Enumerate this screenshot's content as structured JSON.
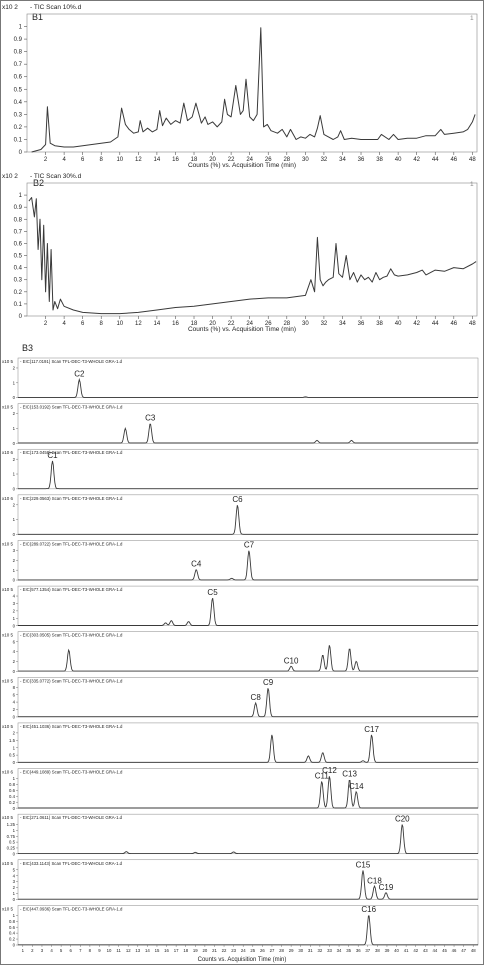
{
  "panels": {
    "b1": {
      "tag": "B1",
      "scale": "x10 2",
      "trace_title": "- TIC Scan 10%.d",
      "marker": "1",
      "xlabel": "Counts (%) vs. Acquisition Time (min)"
    },
    "b2": {
      "tag": "B2",
      "scale": "x10 2",
      "trace_title": "- TIC Scan 30%.d",
      "marker": "1",
      "xlabel": "Counts (%) vs. Acquisition Time (min)"
    },
    "b3": {
      "tag": "B3",
      "xlabel": "Counts vs. Acquisition Time (min)"
    }
  },
  "colors": {
    "trace": "#3a3a3a",
    "axis": "#555555",
    "frame": "#888888",
    "text": "#222222",
    "bg": "#ffffff"
  },
  "chart_data": [
    {
      "type": "line",
      "title": "- TIC Scan 10%.d",
      "xlabel": "Counts (%) vs. Acquisition Time (min)",
      "xlim": [
        0,
        48.5
      ],
      "ylim": [
        0,
        1.1
      ],
      "x_ticks": [
        2,
        4,
        6,
        8,
        10,
        12,
        14,
        16,
        18,
        20,
        22,
        24,
        26,
        28,
        30,
        32,
        34,
        36,
        38,
        40,
        42,
        44,
        46,
        48
      ],
      "y_ticks": [
        0,
        0.1,
        0.2,
        0.3,
        0.4,
        0.5,
        0.6,
        0.7,
        0.8,
        0.9,
        1
      ],
      "series": [
        {
          "x": [
            0.5,
            1.5,
            2.0,
            2.2,
            2.5,
            3,
            4,
            5,
            6,
            7,
            8,
            9,
            9.8,
            10.2,
            10.6,
            11,
            11.5,
            12,
            12.2,
            12.5,
            13,
            13.5,
            14,
            14.3,
            14.6,
            15,
            15.5,
            16,
            16.5,
            16.9,
            17.3,
            17.8,
            18.2,
            18.8,
            19.2,
            19.5,
            20,
            20.5,
            21,
            21.3,
            21.6,
            22,
            22.5,
            23,
            23.3,
            23.6,
            24,
            24.4,
            24.8,
            25.2,
            25.5,
            25.9,
            26.3,
            27,
            27.5,
            28,
            28.4,
            29,
            29.5,
            30,
            30.5,
            31,
            31.3,
            31.6,
            32,
            32.5,
            33,
            33.5,
            33.8,
            34.2,
            35,
            36,
            37,
            37.8,
            38.2,
            39,
            39.5,
            40,
            41,
            42,
            43,
            44,
            44.6,
            45,
            46,
            47,
            47.5,
            48,
            48.3
          ],
          "y": [
            0,
            0.02,
            0.06,
            0.36,
            0.07,
            0.05,
            0.04,
            0.04,
            0.05,
            0.06,
            0.07,
            0.08,
            0.12,
            0.35,
            0.22,
            0.18,
            0.15,
            0.16,
            0.25,
            0.16,
            0.19,
            0.16,
            0.18,
            0.33,
            0.21,
            0.27,
            0.22,
            0.25,
            0.23,
            0.39,
            0.25,
            0.28,
            0.39,
            0.23,
            0.28,
            0.22,
            0.24,
            0.2,
            0.24,
            0.42,
            0.3,
            0.28,
            0.53,
            0.3,
            0.33,
            0.58,
            0.28,
            0.25,
            0.3,
            0.99,
            0.2,
            0.22,
            0.17,
            0.15,
            0.18,
            0.12,
            0.18,
            0.1,
            0.12,
            0.11,
            0.14,
            0.12,
            0.19,
            0.29,
            0.14,
            0.12,
            0.1,
            0.12,
            0.17,
            0.1,
            0.11,
            0.1,
            0.1,
            0.1,
            0.14,
            0.1,
            0.14,
            0.1,
            0.11,
            0.11,
            0.13,
            0.13,
            0.18,
            0.14,
            0.15,
            0.16,
            0.18,
            0.24,
            0.3
          ]
        }
      ]
    },
    {
      "type": "line",
      "title": "- TIC Scan 30%.d",
      "xlabel": "Counts (%) vs. Acquisition Time (min)",
      "xlim": [
        0,
        48.5
      ],
      "ylim": [
        0,
        1.1
      ],
      "x_ticks": [
        2,
        4,
        6,
        8,
        10,
        12,
        14,
        16,
        18,
        20,
        22,
        24,
        26,
        28,
        30,
        32,
        34,
        36,
        38,
        40,
        42,
        44,
        46,
        48
      ],
      "y_ticks": [
        0,
        0.1,
        0.2,
        0.3,
        0.4,
        0.5,
        0.6,
        0.7,
        0.8,
        0.9,
        1
      ],
      "series": [
        {
          "x": [
            0.2,
            0.5,
            0.8,
            1.0,
            1.2,
            1.4,
            1.6,
            1.8,
            2.0,
            2.2,
            2.4,
            2.6,
            2.8,
            3.0,
            3.3,
            3.6,
            4,
            5,
            6,
            8,
            10,
            12,
            14,
            16,
            18,
            20,
            22,
            24,
            26,
            28,
            30,
            30.6,
            31,
            31.3,
            31.6,
            31.9,
            32.2,
            32.5,
            33,
            33.3,
            33.6,
            34,
            34.4,
            34.8,
            35.2,
            35.6,
            36,
            36.4,
            36.8,
            37.2,
            37.6,
            38,
            38.4,
            38.8,
            39.2,
            39.6,
            40,
            41,
            42,
            42.6,
            43,
            44,
            45,
            46,
            47,
            48,
            48.4
          ],
          "y": [
            0.95,
            0.98,
            0.82,
            0.97,
            0.55,
            0.8,
            0.3,
            0.75,
            0.2,
            0.6,
            0.12,
            0.55,
            0.05,
            0.12,
            0.06,
            0.14,
            0.08,
            0.05,
            0.03,
            0.02,
            0.02,
            0.03,
            0.05,
            0.07,
            0.08,
            0.1,
            0.12,
            0.14,
            0.15,
            0.15,
            0.17,
            0.3,
            0.2,
            0.65,
            0.3,
            0.25,
            0.28,
            0.3,
            0.32,
            0.6,
            0.35,
            0.32,
            0.5,
            0.3,
            0.36,
            0.28,
            0.34,
            0.3,
            0.32,
            0.28,
            0.36,
            0.3,
            0.32,
            0.33,
            0.39,
            0.34,
            0.33,
            0.34,
            0.36,
            0.38,
            0.34,
            0.38,
            0.37,
            0.4,
            0.39,
            0.43,
            0.45
          ]
        }
      ]
    },
    {
      "type": "line",
      "subplots": [
        {
          "label": "EIC(117.0191) Scan TFL-DEC-T3-WHOLE GRA-1.d",
          "scale": "x10 5",
          "yticks": [
            0,
            1,
            2
          ],
          "ymax": 2.2,
          "peaks": [
            {
              "x": 6.9,
              "h": 0.55,
              "label": "C2"
            },
            {
              "x": 30.5,
              "h": 0.02
            }
          ]
        },
        {
          "label": "EIC(153.0192) Scan TFL-DEC-T3-WHOLE GRA-1.d",
          "scale": "x10 5",
          "yticks": [
            0,
            1,
            2
          ],
          "ymax": 2.2,
          "peaks": [
            {
              "x": 11.7,
              "h": 0.45
            },
            {
              "x": 14.3,
              "h": 0.6,
              "label": "C3"
            },
            {
              "x": 31.7,
              "h": 0.08
            },
            {
              "x": 35.3,
              "h": 0.08
            }
          ]
        },
        {
          "label": "EIC(173.0458) Scan TFL-DEC-T3-WHOLE GRA-1.d",
          "scale": "x10 6",
          "yticks": [
            0,
            1,
            2
          ],
          "ymax": 2.2,
          "peaks": [
            {
              "x": 4.1,
              "h": 0.85,
              "label": "C1"
            }
          ]
        },
        {
          "label": "EIC(229.0563) Scan TFL-DEC-T3-WHOLE GRA-1.d",
          "scale": "x10 6",
          "yticks": [
            0,
            1,
            2
          ],
          "ymax": 2.2,
          "peaks": [
            {
              "x": 23.4,
              "h": 0.9,
              "label": "C6"
            }
          ]
        },
        {
          "label": "EIC(289.0722) Scan TFL-DEC-T3-WHOLE GRA-1.d",
          "scale": "x10 5",
          "yticks": [
            0,
            1,
            2,
            3
          ],
          "ymax": 3.3,
          "peaks": [
            {
              "x": 19.1,
              "h": 0.32,
              "label": "C4"
            },
            {
              "x": 22.8,
              "h": 0.05
            },
            {
              "x": 24.6,
              "h": 0.9,
              "label": "C7"
            }
          ]
        },
        {
          "label": "EIC(577.1354) Scan TFL-DEC-T3-WHOLE GRA-1.d",
          "scale": "x10 5",
          "yticks": [
            0,
            1,
            2,
            3,
            4
          ],
          "ymax": 4.4,
          "peaks": [
            {
              "x": 15.9,
              "h": 0.08
            },
            {
              "x": 16.5,
              "h": 0.15
            },
            {
              "x": 18.3,
              "h": 0.12
            },
            {
              "x": 20.8,
              "h": 0.85,
              "label": "C5"
            }
          ]
        },
        {
          "label": "EIC(303.0505) Scan TFL-DEC-T3-WHOLE GRA-1.d",
          "scale": "x10 5",
          "yticks": [
            0,
            2,
            4,
            6
          ],
          "ymax": 6.6,
          "peaks": [
            {
              "x": 5.8,
              "h": 0.65
            },
            {
              "x": 29.0,
              "h": 0.15,
              "label": "C10"
            },
            {
              "x": 32.3,
              "h": 0.5
            },
            {
              "x": 33.0,
              "h": 0.8
            },
            {
              "x": 35.1,
              "h": 0.7
            },
            {
              "x": 35.8,
              "h": 0.3
            }
          ]
        },
        {
          "label": "EIC(335.0772) Scan TFL-DEC-T3-WHOLE GRA-1.d",
          "scale": "x10 5",
          "yticks": [
            0,
            2,
            4,
            6,
            8
          ],
          "ymax": 8.8,
          "peaks": [
            {
              "x": 25.3,
              "h": 0.42,
              "label": "C8"
            },
            {
              "x": 26.6,
              "h": 0.88,
              "label": "C9"
            }
          ]
        },
        {
          "label": "EIC(451.1036) Scan TFL-DEC-T3-WHOLE GRA-1.d",
          "scale": "x10 5",
          "yticks": [
            0,
            0.5,
            1,
            1.5,
            2
          ],
          "ymax": 2.2,
          "peaks": [
            {
              "x": 27.0,
              "h": 0.85
            },
            {
              "x": 30.8,
              "h": 0.2
            },
            {
              "x": 32.3,
              "h": 0.3
            },
            {
              "x": 36.5,
              "h": 0.05
            },
            {
              "x": 37.4,
              "h": 0.85,
              "label": "C17"
            }
          ]
        },
        {
          "label": "EIC(449.1089) Scan TFL-DEC-T3-WHOLE GRA-1.d",
          "scale": "x10 6",
          "yticks": [
            0,
            0.2,
            0.4,
            0.6,
            0.8,
            1
          ],
          "ymax": 1.1,
          "peaks": [
            {
              "x": 32.2,
              "h": 0.82,
              "label": "C11"
            },
            {
              "x": 33.0,
              "h": 0.98,
              "label": "C12"
            },
            {
              "x": 35.1,
              "h": 0.88,
              "label": "C13"
            },
            {
              "x": 35.8,
              "h": 0.5,
              "label": "C14"
            }
          ]
        },
        {
          "label": "EIC(271.0611) Scan TFL-DEC-T3-WHOLE GRA-1.d",
          "scale": "x10 5",
          "yticks": [
            0,
            0.25,
            0.5,
            0.75,
            1,
            1.25
          ],
          "ymax": 1.4,
          "peaks": [
            {
              "x": 11.8,
              "h": 0.06
            },
            {
              "x": 19.0,
              "h": 0.04
            },
            {
              "x": 23.0,
              "h": 0.05
            },
            {
              "x": 40.6,
              "h": 0.9,
              "label": "C20"
            }
          ]
        },
        {
          "label": "EIC(433.1143) Scan TFL-DEC-T3-WHOLE GRA-1.d",
          "scale": "x10 5",
          "yticks": [
            0,
            1,
            2,
            3,
            4,
            5
          ],
          "ymax": 5.5,
          "peaks": [
            {
              "x": 36.5,
              "h": 0.88,
              "label": "C15"
            },
            {
              "x": 37.7,
              "h": 0.4,
              "label": "C18"
            },
            {
              "x": 38.9,
              "h": 0.2,
              "label": "C19"
            }
          ]
        },
        {
          "label": "EIC(447.0936) Scan TFL-DEC-T3-WHOLE GRA-1.d",
          "scale": "x10 5",
          "yticks": [
            0,
            0.2,
            0.4,
            0.6,
            0.8,
            1
          ],
          "ymax": 1.1,
          "peaks": [
            {
              "x": 37.1,
              "h": 0.92,
              "label": "C16"
            }
          ]
        }
      ],
      "xlim": [
        0.5,
        48.5
      ],
      "x_ticks": [
        1,
        2,
        3,
        4,
        5,
        6,
        7,
        8,
        9,
        10,
        11,
        12,
        13,
        14,
        15,
        16,
        17,
        18,
        19,
        20,
        21,
        22,
        23,
        24,
        25,
        26,
        27,
        28,
        29,
        30,
        31,
        32,
        33,
        34,
        35,
        36,
        37,
        38,
        39,
        40,
        41,
        42,
        43,
        44,
        45,
        46,
        47,
        48
      ],
      "xlabel": "Counts vs. Acquisition Time (min)"
    }
  ]
}
